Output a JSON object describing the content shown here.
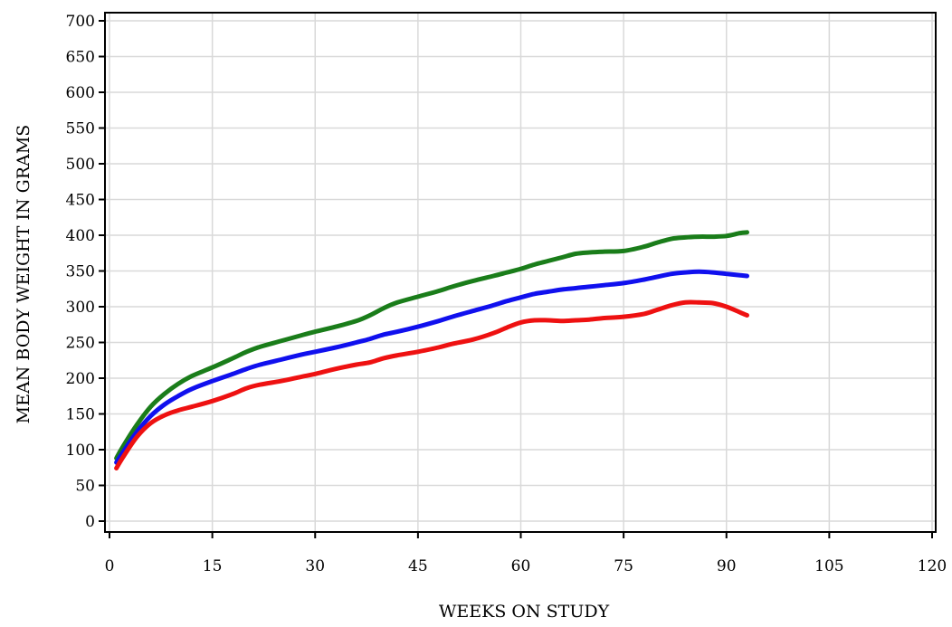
{
  "chart_data": {
    "type": "line",
    "title": "",
    "xlabel": "WEEKS ON STUDY",
    "ylabel": "MEAN BODY WEIGHT IN GRAMS",
    "xlim": [
      0,
      120
    ],
    "ylim": [
      0,
      700
    ],
    "xticks": [
      0,
      15,
      30,
      45,
      60,
      75,
      90,
      105,
      120
    ],
    "yticks": [
      0,
      50,
      100,
      150,
      200,
      250,
      300,
      350,
      400,
      450,
      500,
      550,
      600,
      650,
      700
    ],
    "grid": true,
    "legend": "none",
    "series": [
      {
        "color": "#1a7d1a",
        "points": [
          [
            1,
            88
          ],
          [
            2,
            105
          ],
          [
            4,
            135
          ],
          [
            6,
            160
          ],
          [
            8,
            178
          ],
          [
            10,
            192
          ],
          [
            12,
            203
          ],
          [
            15,
            215
          ],
          [
            18,
            228
          ],
          [
            20,
            237
          ],
          [
            22,
            244
          ],
          [
            25,
            252
          ],
          [
            28,
            260
          ],
          [
            30,
            265
          ],
          [
            33,
            272
          ],
          [
            36,
            280
          ],
          [
            38,
            288
          ],
          [
            40,
            298
          ],
          [
            42,
            306
          ],
          [
            45,
            314
          ],
          [
            48,
            322
          ],
          [
            50,
            328
          ],
          [
            53,
            336
          ],
          [
            56,
            343
          ],
          [
            58,
            348
          ],
          [
            60,
            353
          ],
          [
            62,
            359
          ],
          [
            64,
            364
          ],
          [
            66,
            369
          ],
          [
            68,
            374
          ],
          [
            70,
            376
          ],
          [
            72,
            377
          ],
          [
            75,
            378
          ],
          [
            78,
            384
          ],
          [
            80,
            390
          ],
          [
            82,
            395
          ],
          [
            84,
            397
          ],
          [
            86,
            398
          ],
          [
            88,
            398
          ],
          [
            90,
            399
          ],
          [
            92,
            403
          ],
          [
            93,
            404
          ]
        ]
      },
      {
        "color": "#1010ee",
        "points": [
          [
            1,
            82
          ],
          [
            2,
            97
          ],
          [
            4,
            125
          ],
          [
            6,
            147
          ],
          [
            8,
            163
          ],
          [
            10,
            175
          ],
          [
            12,
            185
          ],
          [
            15,
            196
          ],
          [
            18,
            206
          ],
          [
            20,
            213
          ],
          [
            22,
            219
          ],
          [
            25,
            226
          ],
          [
            28,
            233
          ],
          [
            30,
            237
          ],
          [
            33,
            243
          ],
          [
            36,
            250
          ],
          [
            38,
            255
          ],
          [
            40,
            261
          ],
          [
            42,
            265
          ],
          [
            45,
            272
          ],
          [
            48,
            280
          ],
          [
            50,
            286
          ],
          [
            53,
            294
          ],
          [
            56,
            302
          ],
          [
            58,
            308
          ],
          [
            60,
            313
          ],
          [
            62,
            318
          ],
          [
            64,
            321
          ],
          [
            66,
            324
          ],
          [
            68,
            326
          ],
          [
            70,
            328
          ],
          [
            72,
            330
          ],
          [
            75,
            333
          ],
          [
            78,
            338
          ],
          [
            80,
            342
          ],
          [
            82,
            346
          ],
          [
            84,
            348
          ],
          [
            86,
            349
          ],
          [
            88,
            348
          ],
          [
            90,
            346
          ],
          [
            92,
            344
          ],
          [
            93,
            343
          ]
        ]
      },
      {
        "color": "#ee1111",
        "points": [
          [
            1,
            74
          ],
          [
            2,
            90
          ],
          [
            4,
            118
          ],
          [
            6,
            137
          ],
          [
            8,
            148
          ],
          [
            10,
            155
          ],
          [
            12,
            160
          ],
          [
            15,
            168
          ],
          [
            18,
            178
          ],
          [
            20,
            186
          ],
          [
            22,
            191
          ],
          [
            25,
            196
          ],
          [
            28,
            202
          ],
          [
            30,
            206
          ],
          [
            33,
            213
          ],
          [
            36,
            219
          ],
          [
            38,
            222
          ],
          [
            40,
            228
          ],
          [
            42,
            232
          ],
          [
            45,
            237
          ],
          [
            48,
            243
          ],
          [
            50,
            248
          ],
          [
            53,
            254
          ],
          [
            56,
            263
          ],
          [
            58,
            271
          ],
          [
            60,
            278
          ],
          [
            62,
            281
          ],
          [
            64,
            281
          ],
          [
            66,
            280
          ],
          [
            68,
            281
          ],
          [
            70,
            282
          ],
          [
            72,
            284
          ],
          [
            75,
            286
          ],
          [
            78,
            290
          ],
          [
            80,
            296
          ],
          [
            82,
            302
          ],
          [
            84,
            306
          ],
          [
            86,
            306
          ],
          [
            88,
            305
          ],
          [
            90,
            300
          ],
          [
            92,
            292
          ],
          [
            93,
            288
          ]
        ]
      }
    ]
  }
}
